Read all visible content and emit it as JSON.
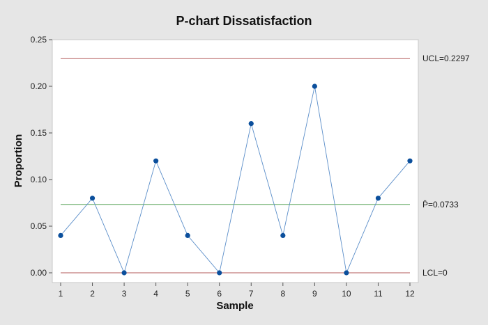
{
  "chart_data": {
    "type": "line",
    "title": "P-chart Dissatisfaction",
    "xlabel": "Sample",
    "ylabel": "Proportion",
    "x": [
      1,
      2,
      3,
      4,
      5,
      6,
      7,
      8,
      9,
      10,
      11,
      12
    ],
    "series": [
      {
        "values": [
          0.04,
          0.08,
          0.0,
          0.12,
          0.04,
          0.0,
          0.16,
          0.04,
          0.2,
          0.0,
          0.08,
          0.12
        ]
      }
    ],
    "ylim": [
      0,
      0.25
    ],
    "xlim": [
      1,
      12
    ],
    "yticks": [
      "0.00",
      "0.05",
      "0.10",
      "0.15",
      "0.20",
      "0.25"
    ],
    "xticks": [
      "1",
      "2",
      "3",
      "4",
      "5",
      "6",
      "7",
      "8",
      "9",
      "10",
      "11",
      "12"
    ],
    "reference_lines": [
      {
        "label": "UCL=0.2297",
        "value": 0.2297,
        "color": "#b35a5a"
      },
      {
        "label": "P̄=0.0733",
        "value": 0.0733,
        "color": "#5aa55a"
      },
      {
        "label": "LCL=0",
        "value": 0,
        "color": "#b35a5a"
      }
    ],
    "series_color": "#5b8ec9",
    "marker_color": "#0b4f9c",
    "grid": false
  }
}
